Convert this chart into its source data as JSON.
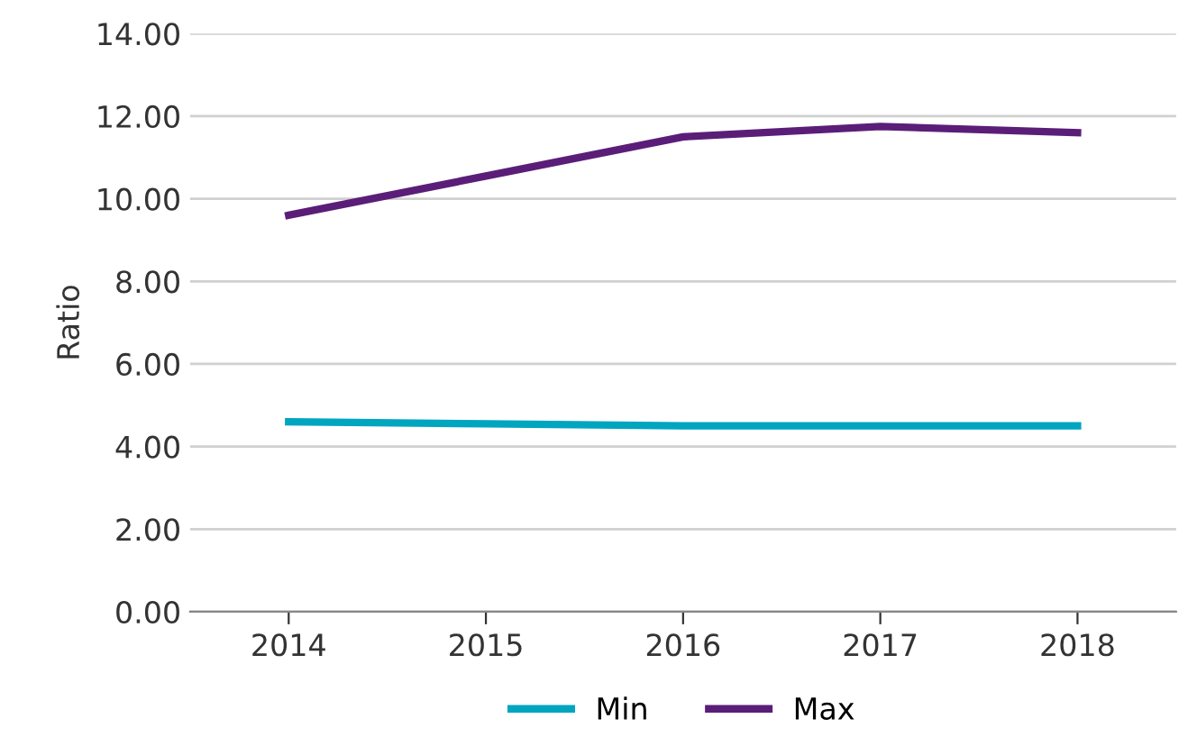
{
  "chart_data": {
    "type": "line",
    "ylabel": "Ratio",
    "categories": [
      "2014",
      "2015",
      "2016",
      "2017",
      "2018"
    ],
    "series": [
      {
        "name": "Min",
        "color": "#00a5c0",
        "values": [
          4.6,
          4.55,
          4.5,
          4.5,
          4.5
        ]
      },
      {
        "name": "Max",
        "color": "#5a1e78",
        "values": [
          9.6,
          10.55,
          11.5,
          11.75,
          11.6
        ]
      }
    ],
    "ylim": [
      0,
      14
    ],
    "yticks": [
      {
        "value": 0,
        "label": "0.00"
      },
      {
        "value": 2,
        "label": "2.00"
      },
      {
        "value": 4,
        "label": "4.00"
      },
      {
        "value": 6,
        "label": "6.00"
      },
      {
        "value": 8,
        "label": "8.00"
      },
      {
        "value": 10,
        "label": "10.00"
      },
      {
        "value": 12,
        "label": "12.00"
      },
      {
        "value": 14,
        "label": "14.00"
      }
    ],
    "grid": "y",
    "legend": "bottom",
    "marker": "none",
    "line_style": "solid"
  }
}
